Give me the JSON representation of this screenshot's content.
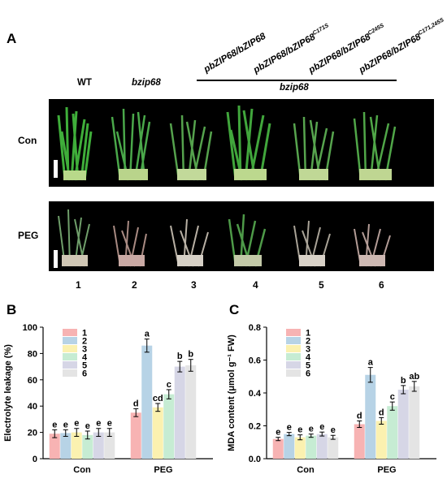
{
  "panel_a": {
    "letter": "A",
    "genotypes": {
      "wt": "WT",
      "bzip68": "bzip68",
      "g3": "pbZIP68/bZIP68",
      "g4": "pbZIP68/bZIP68",
      "g4_sup": "C171S",
      "g5": "pbZIP68/bZIP68",
      "g5_sup": "C245S",
      "g6": "pbZIP68/bZIP68",
      "g6_sup": "C171,245S"
    },
    "bracket_label": "bzip68",
    "row_labels": [
      "Con",
      "PEG"
    ],
    "lanes": [
      "1",
      "2",
      "3",
      "4",
      "5",
      "6"
    ]
  },
  "chart_data": [
    {
      "panel": "B",
      "type": "bar",
      "categories": [
        "Con",
        "PEG"
      ],
      "ylabel": "Electrolyte leakage (%)",
      "ylim": [
        0,
        100
      ],
      "yticks": [
        "0",
        "20",
        "40",
        "60",
        "80",
        "100"
      ],
      "legend": [
        "1",
        "2",
        "3",
        "4",
        "5",
        "6"
      ],
      "colors": [
        "#f7b3b3",
        "#b7d3e6",
        "#fbf1b0",
        "#c6ecd3",
        "#d6d6e6",
        "#e4e4e4"
      ],
      "series": [
        {
          "name": "1",
          "values": [
            19,
            35
          ],
          "errors": [
            3,
            3
          ],
          "letters": [
            "e",
            "d"
          ]
        },
        {
          "name": "2",
          "values": [
            19.5,
            86
          ],
          "errors": [
            2.5,
            5
          ],
          "letters": [
            "e",
            "a"
          ]
        },
        {
          "name": "3",
          "values": [
            20,
            39
          ],
          "errors": [
            3,
            3
          ],
          "letters": [
            "e",
            "cd"
          ]
        },
        {
          "name": "4",
          "values": [
            18,
            49
          ],
          "errors": [
            3,
            3.5
          ],
          "letters": [
            "e",
            "c"
          ]
        },
        {
          "name": "5",
          "values": [
            20,
            70
          ],
          "errors": [
            3,
            4
          ],
          "letters": [
            "e",
            "b"
          ]
        },
        {
          "name": "6",
          "values": [
            20,
            71
          ],
          "errors": [
            3,
            4.5
          ],
          "letters": [
            "e",
            "b"
          ]
        }
      ]
    },
    {
      "panel": "C",
      "type": "bar",
      "categories": [
        "Con",
        "PEG"
      ],
      "ylabel": "MDA content (μmol g⁻¹ FW)",
      "ylim": [
        0,
        0.8
      ],
      "yticks": [
        "0.0",
        "0.2",
        "0.4",
        "0.6",
        "0.8"
      ],
      "legend": [
        "1",
        "2",
        "3",
        "4",
        "5",
        "6"
      ],
      "colors": [
        "#f7b3b3",
        "#b7d3e6",
        "#fbf1b0",
        "#c6ecd3",
        "#d6d6e6",
        "#e4e4e4"
      ],
      "series": [
        {
          "name": "1",
          "values": [
            0.12,
            0.21
          ],
          "errors": [
            0.01,
            0.02
          ],
          "letters": [
            "e",
            "d"
          ]
        },
        {
          "name": "2",
          "values": [
            0.15,
            0.51
          ],
          "errors": [
            0.01,
            0.045
          ],
          "letters": [
            "e",
            "a"
          ]
        },
        {
          "name": "3",
          "values": [
            0.13,
            0.23
          ],
          "errors": [
            0.015,
            0.02
          ],
          "letters": [
            "e",
            "d"
          ]
        },
        {
          "name": "4",
          "values": [
            0.14,
            0.32
          ],
          "errors": [
            0.01,
            0.025
          ],
          "letters": [
            "e",
            "c"
          ]
        },
        {
          "name": "5",
          "values": [
            0.15,
            0.42
          ],
          "errors": [
            0.012,
            0.025
          ],
          "letters": [
            "e",
            "b"
          ]
        },
        {
          "name": "6",
          "values": [
            0.13,
            0.44
          ],
          "errors": [
            0.012,
            0.03
          ],
          "letters": [
            "e",
            "ab"
          ]
        }
      ]
    }
  ]
}
